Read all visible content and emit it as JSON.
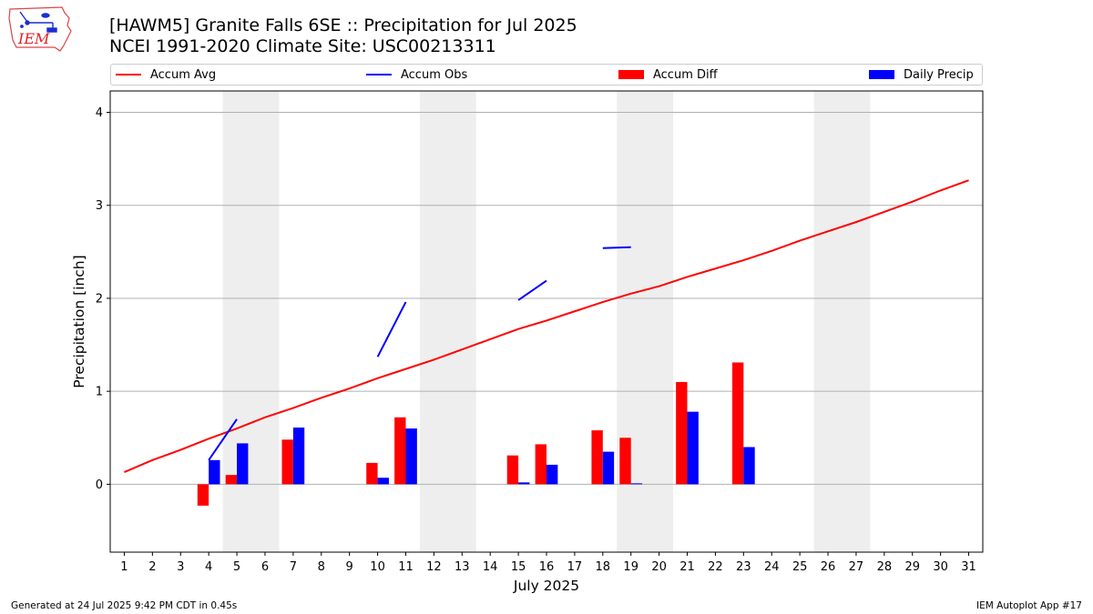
{
  "header": {
    "logo_text": "IEM",
    "title_line1": "[HAWM5] Granite Falls 6SE :: Precipitation for Jul 2025",
    "title_line2": "NCEI 1991-2020 Climate Site: USC00213311"
  },
  "legend": {
    "items": [
      {
        "label": "Accum Avg",
        "kind": "line",
        "color": "#ff0000"
      },
      {
        "label": "Accum Obs",
        "kind": "line",
        "color": "#0000ff"
      },
      {
        "label": "Accum Diff",
        "kind": "box",
        "color": "#ff0000"
      },
      {
        "label": "Daily Precip",
        "kind": "box",
        "color": "#0000ff"
      }
    ]
  },
  "footer": {
    "left": "Generated at 24 Jul 2025 9:42 PM CDT in 0.45s",
    "right": "IEM Autoplot App #17"
  },
  "chart_data": {
    "type": "bar",
    "xlabel": "July 2025",
    "ylabel": "Precipitation [inch]",
    "xlim": [
      0.5,
      31.5
    ],
    "ylim": [
      -0.73,
      4.23
    ],
    "yticks": [
      0,
      1,
      2,
      3,
      4
    ],
    "grid": "horizontal",
    "weekend_bands": [
      [
        4.5,
        6.5
      ],
      [
        11.5,
        13.5
      ],
      [
        18.5,
        20.5
      ],
      [
        25.5,
        27.5
      ]
    ],
    "days": [
      1,
      2,
      3,
      4,
      5,
      6,
      7,
      8,
      9,
      10,
      11,
      12,
      13,
      14,
      15,
      16,
      17,
      18,
      19,
      20,
      21,
      22,
      23,
      24,
      25,
      26,
      27,
      28,
      29,
      30,
      31
    ],
    "accum_avg": [
      0.13,
      0.26,
      0.37,
      0.49,
      0.6,
      0.72,
      0.82,
      0.93,
      1.03,
      1.14,
      1.24,
      1.34,
      1.45,
      1.56,
      1.67,
      1.76,
      1.86,
      1.96,
      2.05,
      2.13,
      2.23,
      2.32,
      2.41,
      2.51,
      2.62,
      2.72,
      2.82,
      2.93,
      3.04,
      3.16,
      3.27
    ],
    "accum_obs_segments": [
      {
        "x": [
          4,
          5
        ],
        "y": [
          0.26,
          0.7
        ]
      },
      {
        "x": [
          10,
          11
        ],
        "y": [
          1.37,
          1.96
        ]
      },
      {
        "x": [
          15,
          16
        ],
        "y": [
          1.98,
          2.19
        ]
      },
      {
        "x": [
          18,
          19
        ],
        "y": [
          2.54,
          2.55
        ]
      }
    ],
    "accum_diff": [
      {
        "day": 4,
        "value": -0.23
      },
      {
        "day": 5,
        "value": 0.1
      },
      {
        "day": 7,
        "value": 0.48
      },
      {
        "day": 10,
        "value": 0.23
      },
      {
        "day": 11,
        "value": 0.72
      },
      {
        "day": 15,
        "value": 0.31
      },
      {
        "day": 16,
        "value": 0.43
      },
      {
        "day": 18,
        "value": 0.58
      },
      {
        "day": 19,
        "value": 0.5
      },
      {
        "day": 21,
        "value": 1.1
      },
      {
        "day": 23,
        "value": 1.31
      }
    ],
    "daily_precip": [
      {
        "day": 4,
        "value": 0.26
      },
      {
        "day": 5,
        "value": 0.44
      },
      {
        "day": 7,
        "value": 0.61
      },
      {
        "day": 10,
        "value": 0.07
      },
      {
        "day": 11,
        "value": 0.6
      },
      {
        "day": 15,
        "value": 0.02
      },
      {
        "day": 16,
        "value": 0.21
      },
      {
        "day": 18,
        "value": 0.35
      },
      {
        "day": 19,
        "value": 0.01
      },
      {
        "day": 21,
        "value": 0.78
      },
      {
        "day": 23,
        "value": 0.4
      }
    ]
  }
}
